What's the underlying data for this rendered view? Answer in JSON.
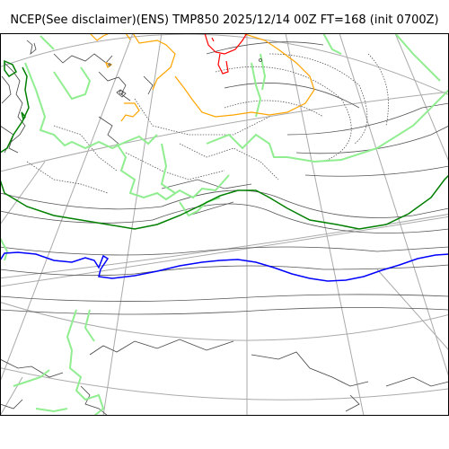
{
  "title": "NCEP(See disclaimer)(ENS) TMP850 2025/12/14 00Z FT=168 (init 0700Z)",
  "map": {
    "variable": "TMP850",
    "contour_colors": {
      "graticule": "#aaaaaa",
      "coastline": "#444444",
      "isotherm_cold_dotted": "#555555",
      "isotherm_solid": "#555555",
      "isotherm_light_green": "#90ee90",
      "isotherm_dark_green": "#008000",
      "isotherm_blue": "#0000ff",
      "isotherm_orange": "#ffa500",
      "isotherm_red": "#ff0000"
    }
  }
}
